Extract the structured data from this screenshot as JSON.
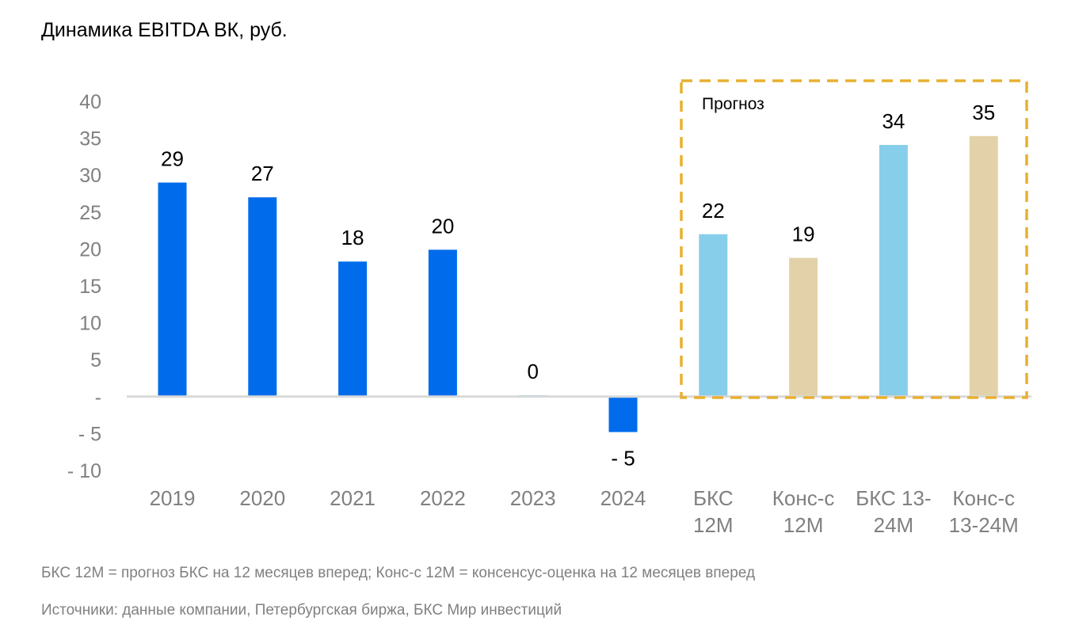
{
  "title": "Динамика EBITDA ВК, руб.",
  "footnote": "БКС 12M = прогноз БКС на 12 месяцев вперед; Конс-с 12M = консенсус-оценка на 12 месяцев вперед",
  "sources": "Источники: данные компании, Петербургская биржа, БКС Мир инвестиций",
  "colors": {
    "historical": "#006CEB",
    "bcs_forecast": "#87CEEB",
    "consensus": "#E3D2A9",
    "forecast_box": "#E8B030",
    "axis_text": "#808080",
    "zero_line": "#D9D9D9"
  },
  "chart_data": {
    "type": "bar",
    "title": "Динамика EBITDA ВК, руб.",
    "xlabel": "",
    "ylabel": "",
    "ylim": [
      -10,
      40
    ],
    "yticks": [
      40,
      35,
      30,
      25,
      20,
      15,
      10,
      5,
      0,
      -5,
      -10
    ],
    "ytick_labels": [
      "40",
      "35",
      "30",
      "25",
      "20",
      "15",
      "10",
      "5",
      "-",
      "- 5",
      "- 10"
    ],
    "grid": false,
    "legend": "none",
    "categories": [
      "2019",
      "2020",
      "2021",
      "2022",
      "2023",
      "2024",
      "БКС 12M",
      "Конс-с 12M",
      "БКС 13-24M",
      "Конс-с 13-24M"
    ],
    "category_labels": [
      [
        "2019"
      ],
      [
        "2020"
      ],
      [
        "2021"
      ],
      [
        "2022"
      ],
      [
        "2023"
      ],
      [
        "2024"
      ],
      [
        "БКС",
        "12M"
      ],
      [
        "Конс-с",
        "12M"
      ],
      [
        "БКС 13-",
        "24M"
      ],
      [
        "Конс-с",
        "13-24M"
      ]
    ],
    "values": [
      29,
      27,
      18.3,
      19.9,
      0.2,
      -4.8,
      22,
      18.8,
      34.1,
      35.3
    ],
    "value_labels": [
      "29",
      "27",
      "18",
      "20",
      "0",
      "- 5",
      "22",
      "19",
      "34",
      "35"
    ],
    "bar_groups": [
      "historical",
      "historical",
      "historical",
      "historical",
      "bcs_forecast",
      "historical",
      "bcs_forecast",
      "consensus",
      "bcs_forecast",
      "consensus"
    ],
    "annotations": [
      {
        "text": "Прогноз",
        "spans_categories": [
          "БКС 12M",
          "Конс-с 13-24M"
        ]
      }
    ]
  }
}
